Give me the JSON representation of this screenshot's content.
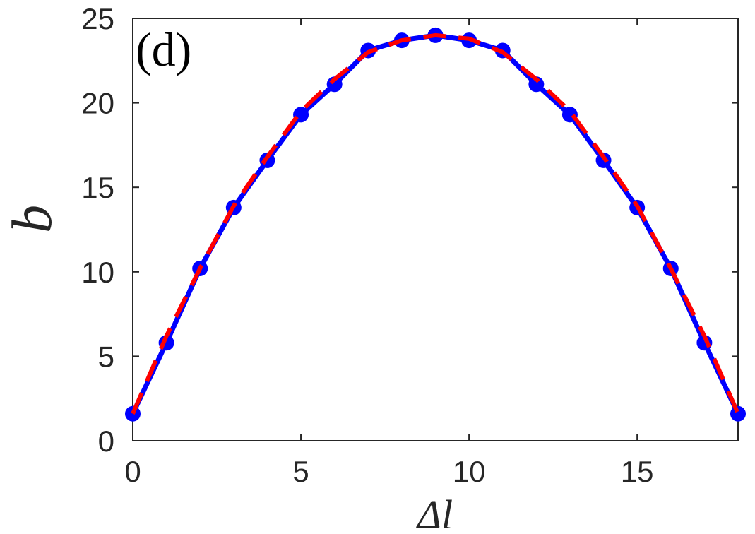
{
  "chart_data": {
    "type": "line",
    "annotation": "(d)",
    "xlabel": "Δl",
    "ylabel": "b",
    "xlim": [
      0,
      18
    ],
    "ylim": [
      0,
      25
    ],
    "xticks": [
      0,
      5,
      10,
      15
    ],
    "yticks": [
      0,
      5,
      10,
      15,
      20,
      25
    ],
    "grid": false,
    "legend": "none",
    "series": [
      {
        "style": "solid-line-with-circle-markers",
        "color": "#0000ff",
        "x": [
          0,
          1,
          2,
          3,
          4,
          5,
          6,
          7,
          8,
          9,
          10,
          11,
          12,
          13,
          14,
          15,
          16,
          17,
          18
        ],
        "y": [
          1.6,
          5.8,
          10.2,
          13.8,
          16.6,
          19.3,
          21.1,
          23.1,
          23.7,
          24.0,
          23.7,
          23.1,
          21.1,
          19.3,
          16.6,
          13.8,
          10.2,
          5.8,
          1.6
        ]
      },
      {
        "style": "dashed-line",
        "color": "#ff0000",
        "x": [
          0,
          1,
          2,
          3,
          4,
          5,
          6,
          7,
          8,
          9,
          10,
          11,
          12,
          13,
          14,
          15,
          16,
          17,
          18
        ],
        "y": [
          1.6,
          6.2,
          10.2,
          13.9,
          16.8,
          19.5,
          21.4,
          23.0,
          23.7,
          24.0,
          23.8,
          23.0,
          21.4,
          19.5,
          16.8,
          13.9,
          10.2,
          6.2,
          1.6
        ]
      }
    ]
  }
}
